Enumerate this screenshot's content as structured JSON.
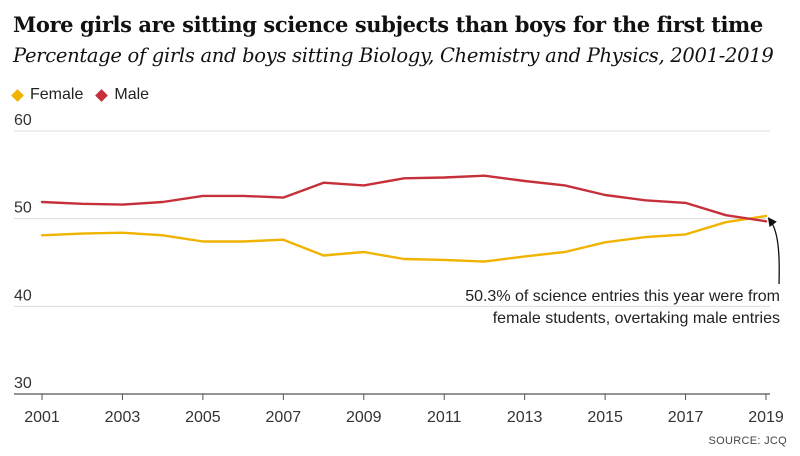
{
  "title": "More girls are sitting science subjects than boys for the first time",
  "subtitle": "Percentage of girls and boys sitting Biology, Chemistry and Physics, 2001-2019",
  "legend": [
    {
      "name": "Female",
      "color": "#f0b400"
    },
    {
      "name": "Male",
      "color": "#c6303a"
    }
  ],
  "source": "SOURCE: JCQ",
  "chart_data": {
    "type": "line",
    "title": "More girls are sitting science subjects than boys for the first time",
    "subtitle": "Percentage of girls and boys sitting Biology, Chemistry and Physics, 2001-2019",
    "xlabel": "",
    "ylabel": "",
    "x": [
      2001,
      2002,
      2003,
      2004,
      2005,
      2006,
      2007,
      2008,
      2009,
      2010,
      2011,
      2012,
      2013,
      2014,
      2015,
      2016,
      2017,
      2018,
      2019
    ],
    "x_ticks": [
      "2001",
      "2003",
      "2005",
      "2007",
      "2009",
      "2011",
      "2013",
      "2015",
      "2017",
      "2019"
    ],
    "ylim": [
      30,
      60
    ],
    "y_ticks": [
      30,
      40,
      50,
      60
    ],
    "grid": "horizontal",
    "legend_position": "top-left",
    "series": [
      {
        "name": "Female",
        "color": "#f0b400",
        "values": [
          48.1,
          48.3,
          48.4,
          48.1,
          47.4,
          47.4,
          47.6,
          45.8,
          46.2,
          45.4,
          45.3,
          45.1,
          45.7,
          46.2,
          47.3,
          47.9,
          48.2,
          49.6,
          50.3
        ]
      },
      {
        "name": "Male",
        "color": "#c6303a",
        "values": [
          51.9,
          51.7,
          51.6,
          51.9,
          52.6,
          52.6,
          52.4,
          54.1,
          53.8,
          54.6,
          54.7,
          54.9,
          54.3,
          53.8,
          52.7,
          52.1,
          51.8,
          50.4,
          49.7
        ]
      }
    ],
    "annotation": {
      "lines": [
        "50.3% of science entries this year were from",
        "female students, overtaking male entries"
      ],
      "target_x": 2019,
      "target_y": 50.3
    }
  }
}
